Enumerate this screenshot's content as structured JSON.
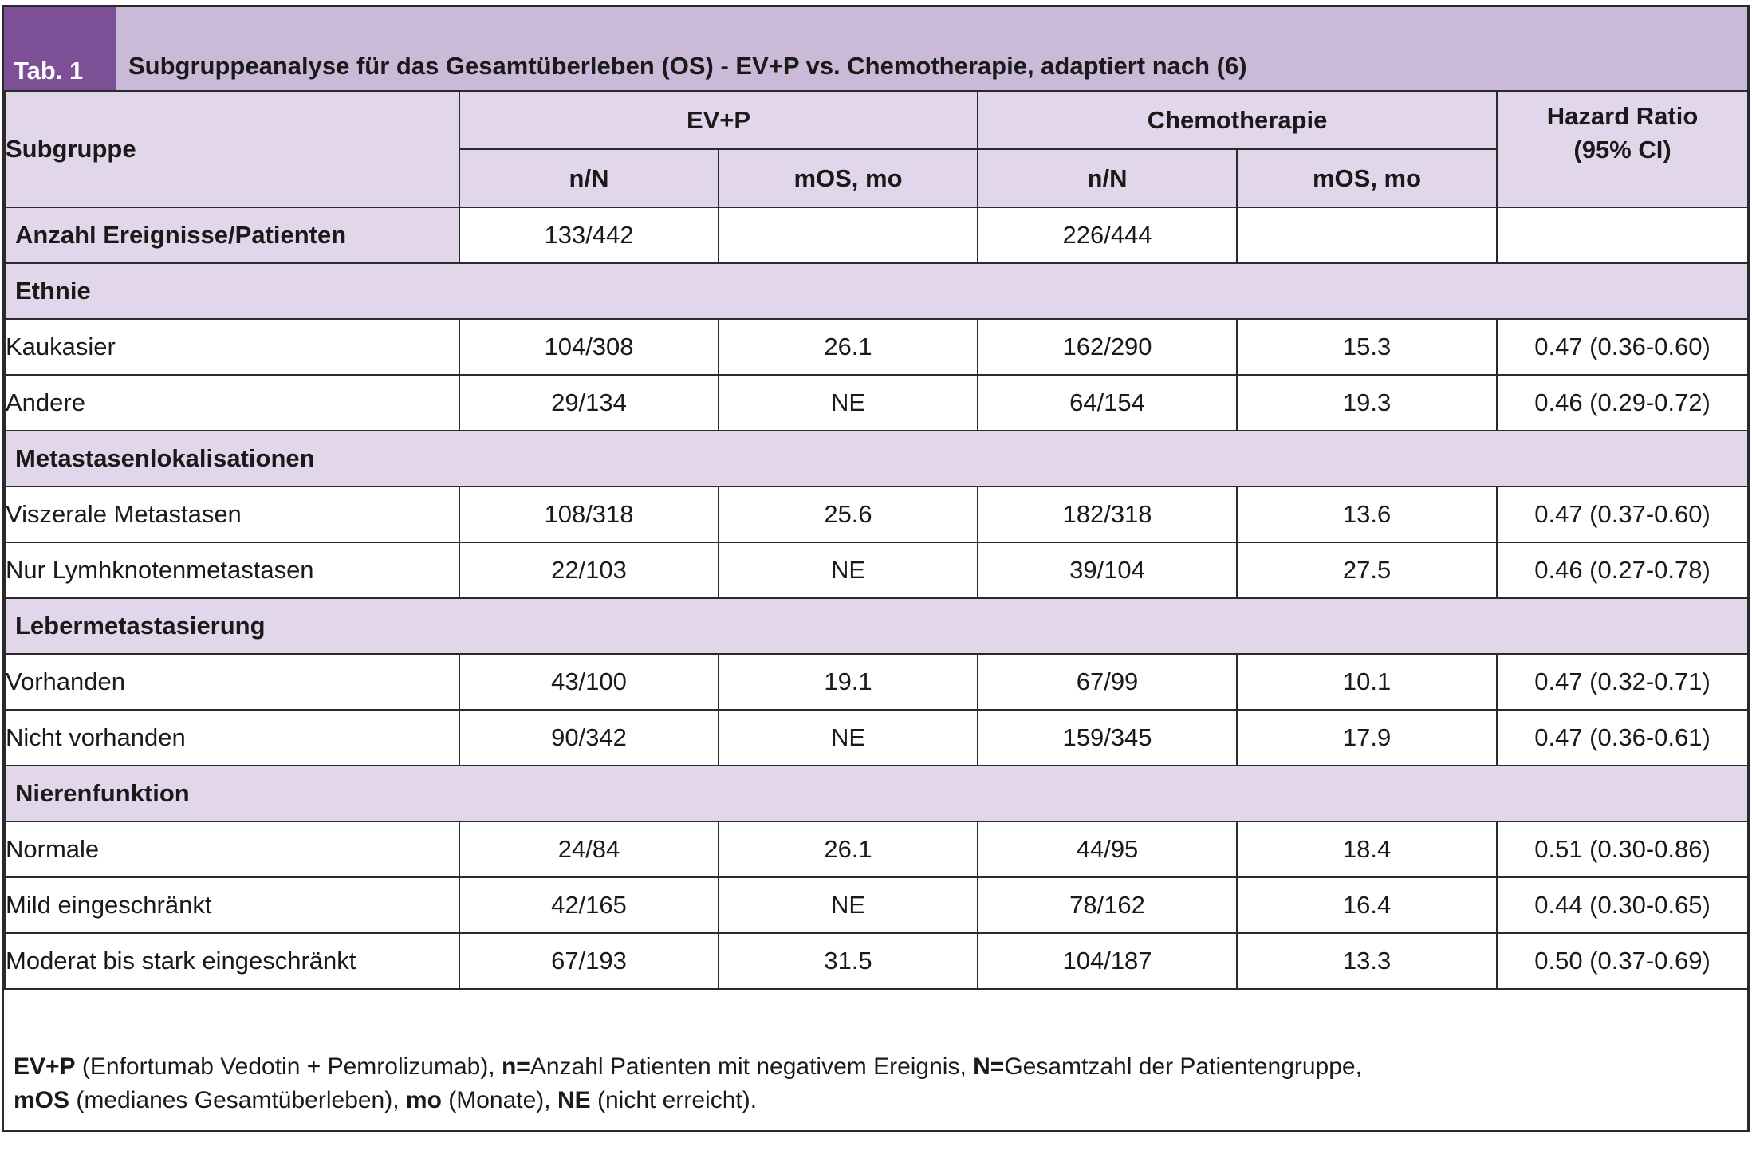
{
  "header": {
    "tab_label": "Tab. 1",
    "title": "Subgruppeanalyse für das Gesamtüberleben (OS) - EV+P vs. Chemotherapie, adaptiert nach (6)"
  },
  "columns": {
    "subgroup": "Subgruppe",
    "group_a": "EV+P",
    "group_b": "Chemotherapie",
    "hazard_line1": "Hazard Ratio",
    "hazard_line2": "(95% CI)",
    "nN": "n/N",
    "mos": "mOS, mo"
  },
  "events_row": {
    "label": "Anzahl Ereignisse/Patienten",
    "a_nN": "133/442",
    "a_mos": "",
    "b_nN": "226/444",
    "b_mos": "",
    "hr": ""
  },
  "sections": [
    {
      "title": "Ethnie",
      "rows": [
        {
          "label": "Kaukasier",
          "a_nN": "104/308",
          "a_mos": "26.1",
          "b_nN": "162/290",
          "b_mos": "15.3",
          "hr": "0.47 (0.36-0.60)"
        },
        {
          "label": "Andere",
          "a_nN": "29/134",
          "a_mos": "NE",
          "b_nN": "64/154",
          "b_mos": "19.3",
          "hr": "0.46 (0.29-0.72)"
        }
      ]
    },
    {
      "title": "Metastasenlokalisationen",
      "rows": [
        {
          "label": "Viszerale Metastasen",
          "a_nN": "108/318",
          "a_mos": "25.6",
          "b_nN": "182/318",
          "b_mos": "13.6",
          "hr": "0.47 (0.37-0.60)"
        },
        {
          "label": "Nur Lymhknotenmetastasen",
          "a_nN": "22/103",
          "a_mos": "NE",
          "b_nN": "39/104",
          "b_mos": "27.5",
          "hr": "0.46 (0.27-0.78)"
        }
      ]
    },
    {
      "title": "Lebermetastasierung",
      "rows": [
        {
          "label": "Vorhanden",
          "a_nN": "43/100",
          "a_mos": "19.1",
          "b_nN": "67/99",
          "b_mos": "10.1",
          "hr": "0.47 (0.32-0.71)"
        },
        {
          "label": "Nicht vorhanden",
          "a_nN": "90/342",
          "a_mos": "NE",
          "b_nN": "159/345",
          "b_mos": "17.9",
          "hr": "0.47 (0.36-0.61)"
        }
      ]
    },
    {
      "title": "Nierenfunktion",
      "rows": [
        {
          "label": "Normale",
          "a_nN": "24/84",
          "a_mos": "26.1",
          "b_nN": "44/95",
          "b_mos": "18.4",
          "hr": "0.51 (0.30-0.86)"
        },
        {
          "label": "Mild eingeschränkt",
          "a_nN": "42/165",
          "a_mos": "NE",
          "b_nN": "78/162",
          "b_mos": "16.4",
          "hr": "0.44 (0.30-0.65)"
        },
        {
          "label": "Moderat bis stark eingeschränkt",
          "a_nN": "67/193",
          "a_mos": "31.5",
          "b_nN": "104/187",
          "b_mos": "13.3",
          "hr": "0.50 (0.37-0.69)"
        }
      ]
    }
  ],
  "footer": {
    "line1": [
      {
        "b": "EV+P",
        "t": " (Enfortumab Vedotin + Pemrolizumab), "
      },
      {
        "b": "n=",
        "t": "Anzahl Patienten mit negativem Ereignis, "
      },
      {
        "b": "N=",
        "t": "Gesamtzahl der Patientengruppe,"
      }
    ],
    "line2": [
      {
        "b": "mOS",
        "t": " (medianes Gesamtüberleben), "
      },
      {
        "b": "mo",
        "t": " (Monate), "
      },
      {
        "b": "NE",
        "t": " (nicht erreicht)."
      }
    ]
  }
}
